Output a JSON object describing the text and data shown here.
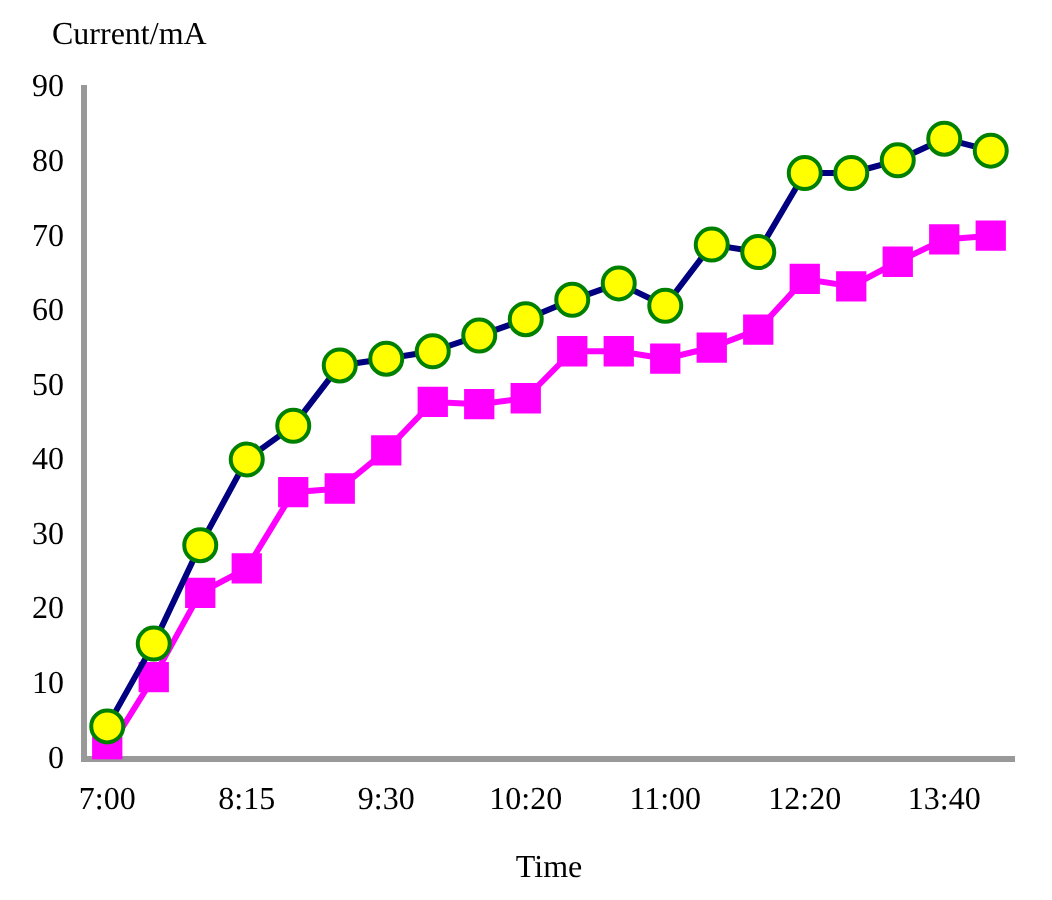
{
  "chart_data": {
    "type": "line",
    "ylabel": "Current/mA",
    "xlabel": "Time",
    "categories": [
      "7:00",
      null,
      null,
      "8:15",
      null,
      null,
      "9:30",
      null,
      null,
      "10:20",
      null,
      null,
      "11:00",
      null,
      null,
      "12:20",
      null,
      null,
      "13:40",
      null
    ],
    "series": [
      {
        "color": "#000080",
        "marker": "circle",
        "values": [
          4.4,
          15.5,
          28.7,
          40.2,
          44.7,
          52.8,
          53.7,
          54.7,
          56.8,
          59,
          61.6,
          63.8,
          60.8,
          69,
          68,
          78.6,
          78.6,
          80.3,
          83.2,
          81.6
        ]
      },
      {
        "color": "#ff00ff",
        "marker": "square",
        "values": [
          1,
          11,
          22.3,
          25.6,
          35.8,
          36.3,
          41.4,
          47.9,
          47.6,
          48.4,
          54.7,
          54.7,
          53.7,
          55.2,
          57.6,
          64.4,
          63.4,
          66.7,
          69.7,
          70.2
        ]
      }
    ],
    "ylim": [
      0,
      90
    ],
    "yticks": [
      0,
      10,
      20,
      30,
      40,
      50,
      60,
      70,
      80,
      90
    ],
    "grid": false,
    "legend": false
  }
}
